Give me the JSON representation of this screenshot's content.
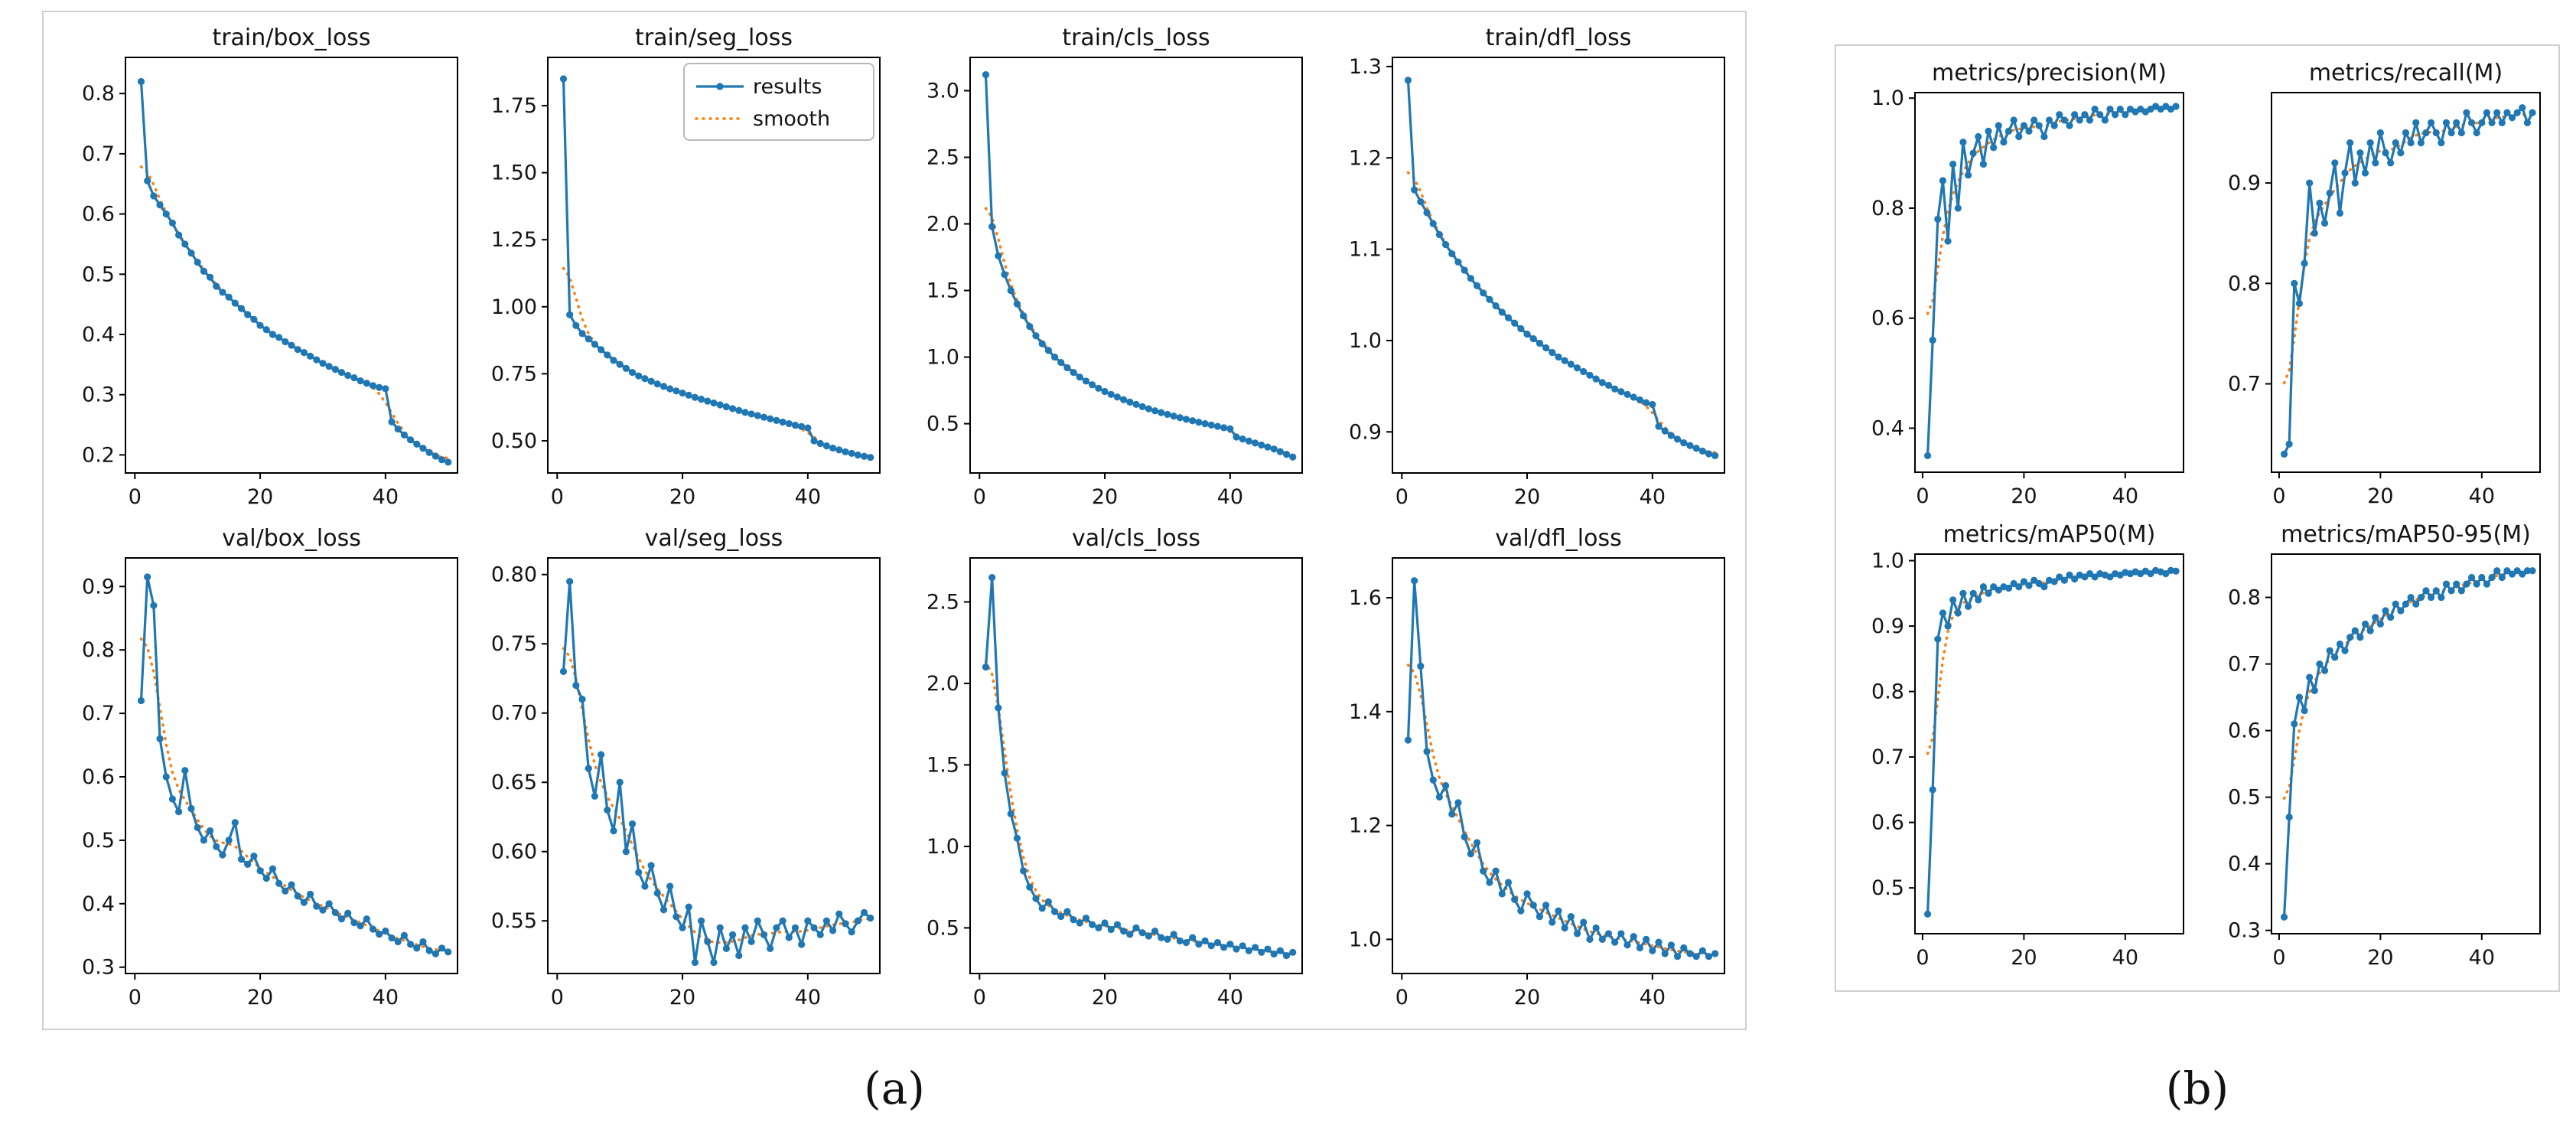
{
  "captions": {
    "a": "(a)",
    "b": "(b)"
  },
  "colors": {
    "results": "#1f77b4",
    "smooth": "#ff7f0e",
    "axis": "#000000",
    "legend_border": "#b9b9b9"
  },
  "legend": {
    "results_label": "results",
    "smooth_label": "smooth"
  },
  "chart_data": [
    {
      "panel": "a",
      "type": "line",
      "title": "train/box_loss",
      "legend": false,
      "x_range": [
        1,
        50
      ],
      "xlim": [
        -1.5,
        51.5
      ],
      "ylim": [
        0.17,
        0.86
      ],
      "xticks": [
        "0",
        "20",
        "40"
      ],
      "yticks": [
        "0.2",
        "0.3",
        "0.4",
        "0.5",
        "0.6",
        "0.7",
        "0.8"
      ],
      "series": [
        {
          "name": "results",
          "values": [
            0.82,
            0.655,
            0.63,
            0.615,
            0.6,
            0.585,
            0.565,
            0.55,
            0.535,
            0.52,
            0.505,
            0.495,
            0.48,
            0.47,
            0.462,
            0.452,
            0.443,
            0.433,
            0.425,
            0.415,
            0.408,
            0.4,
            0.395,
            0.388,
            0.382,
            0.375,
            0.37,
            0.364,
            0.358,
            0.352,
            0.347,
            0.342,
            0.337,
            0.332,
            0.328,
            0.323,
            0.319,
            0.315,
            0.312,
            0.31,
            0.255,
            0.243,
            0.233,
            0.225,
            0.218,
            0.211,
            0.204,
            0.198,
            0.192,
            0.188
          ]
        },
        {
          "name": "smooth",
          "derived_from": "results",
          "style": "dotted"
        }
      ]
    },
    {
      "panel": "a",
      "type": "line",
      "title": "train/seg_loss",
      "legend": true,
      "x_range": [
        1,
        50
      ],
      "xlim": [
        -1.5,
        51.5
      ],
      "ylim": [
        0.38,
        1.93
      ],
      "xticks": [
        "0",
        "20",
        "40"
      ],
      "yticks": [
        "0.50",
        "0.75",
        "1.00",
        "1.25",
        "1.50",
        "1.75"
      ],
      "series": [
        {
          "name": "results",
          "values": [
            1.85,
            0.97,
            0.93,
            0.9,
            0.88,
            0.86,
            0.84,
            0.82,
            0.8,
            0.785,
            0.77,
            0.755,
            0.742,
            0.732,
            0.722,
            0.712,
            0.703,
            0.694,
            0.686,
            0.678,
            0.67,
            0.662,
            0.655,
            0.648,
            0.641,
            0.634,
            0.627,
            0.62,
            0.613,
            0.606,
            0.6,
            0.594,
            0.588,
            0.582,
            0.576,
            0.57,
            0.564,
            0.558,
            0.553,
            0.548,
            0.5,
            0.49,
            0.481,
            0.473,
            0.466,
            0.459,
            0.453,
            0.447,
            0.442,
            0.438
          ]
        },
        {
          "name": "smooth",
          "derived_from": "results",
          "style": "dotted"
        }
      ]
    },
    {
      "panel": "a",
      "type": "line",
      "title": "train/cls_loss",
      "legend": false,
      "x_range": [
        1,
        50
      ],
      "xlim": [
        -1.5,
        51.5
      ],
      "ylim": [
        0.13,
        3.25
      ],
      "xticks": [
        "0",
        "20",
        "40"
      ],
      "yticks": [
        "0.5",
        "1.0",
        "1.5",
        "2.0",
        "2.5",
        "3.0"
      ],
      "series": [
        {
          "name": "results",
          "values": [
            3.12,
            1.98,
            1.76,
            1.62,
            1.5,
            1.4,
            1.31,
            1.23,
            1.16,
            1.1,
            1.05,
            1.0,
            0.96,
            0.92,
            0.885,
            0.85,
            0.82,
            0.792,
            0.766,
            0.742,
            0.72,
            0.7,
            0.68,
            0.662,
            0.645,
            0.628,
            0.612,
            0.597,
            0.583,
            0.57,
            0.557,
            0.545,
            0.533,
            0.522,
            0.511,
            0.5,
            0.49,
            0.48,
            0.47,
            0.462,
            0.4,
            0.385,
            0.37,
            0.355,
            0.34,
            0.325,
            0.31,
            0.29,
            0.27,
            0.25
          ]
        },
        {
          "name": "smooth",
          "derived_from": "results",
          "style": "dotted"
        }
      ]
    },
    {
      "panel": "a",
      "type": "line",
      "title": "train/dfl_loss",
      "legend": false,
      "x_range": [
        1,
        50
      ],
      "xlim": [
        -1.5,
        51.5
      ],
      "ylim": [
        0.855,
        1.31
      ],
      "xticks": [
        "0",
        "20",
        "40"
      ],
      "yticks": [
        "0.9",
        "1.0",
        "1.1",
        "1.2",
        "1.3"
      ],
      "series": [
        {
          "name": "results",
          "values": [
            1.285,
            1.165,
            1.152,
            1.14,
            1.128,
            1.116,
            1.105,
            1.095,
            1.086,
            1.077,
            1.068,
            1.06,
            1.052,
            1.045,
            1.038,
            1.031,
            1.025,
            1.019,
            1.013,
            1.007,
            1.002,
            0.997,
            0.992,
            0.987,
            0.982,
            0.978,
            0.974,
            0.97,
            0.966,
            0.962,
            0.958,
            0.954,
            0.951,
            0.947,
            0.944,
            0.941,
            0.938,
            0.935,
            0.932,
            0.93,
            0.906,
            0.901,
            0.896,
            0.892,
            0.888,
            0.885,
            0.882,
            0.879,
            0.876,
            0.874
          ]
        },
        {
          "name": "smooth",
          "derived_from": "results",
          "style": "dotted"
        }
      ]
    },
    {
      "panel": "a",
      "type": "line",
      "title": "val/box_loss",
      "legend": false,
      "x_range": [
        1,
        50
      ],
      "xlim": [
        -1.5,
        51.5
      ],
      "ylim": [
        0.29,
        0.945
      ],
      "xticks": [
        "0",
        "20",
        "40"
      ],
      "yticks": [
        "0.3",
        "0.4",
        "0.5",
        "0.6",
        "0.7",
        "0.8",
        "0.9"
      ],
      "series": [
        {
          "name": "results",
          "values": [
            0.72,
            0.915,
            0.87,
            0.66,
            0.6,
            0.565,
            0.545,
            0.61,
            0.55,
            0.52,
            0.5,
            0.515,
            0.49,
            0.477,
            0.5,
            0.528,
            0.47,
            0.462,
            0.475,
            0.452,
            0.44,
            0.455,
            0.432,
            0.42,
            0.43,
            0.412,
            0.402,
            0.415,
            0.396,
            0.39,
            0.4,
            0.386,
            0.376,
            0.385,
            0.37,
            0.365,
            0.376,
            0.36,
            0.352,
            0.357,
            0.346,
            0.34,
            0.35,
            0.336,
            0.33,
            0.34,
            0.326,
            0.321,
            0.33,
            0.324
          ]
        },
        {
          "name": "smooth",
          "derived_from": "results",
          "style": "dotted"
        }
      ]
    },
    {
      "panel": "a",
      "type": "line",
      "title": "val/seg_loss",
      "legend": false,
      "x_range": [
        1,
        50
      ],
      "xlim": [
        -1.5,
        51.5
      ],
      "ylim": [
        0.512,
        0.812
      ],
      "xticks": [
        "0",
        "20",
        "40"
      ],
      "yticks": [
        "0.55",
        "0.60",
        "0.65",
        "0.70",
        "0.75",
        "0.80"
      ],
      "series": [
        {
          "name": "results",
          "values": [
            0.73,
            0.795,
            0.72,
            0.71,
            0.66,
            0.64,
            0.67,
            0.63,
            0.615,
            0.65,
            0.6,
            0.62,
            0.585,
            0.575,
            0.59,
            0.57,
            0.558,
            0.575,
            0.553,
            0.545,
            0.56,
            0.52,
            0.55,
            0.535,
            0.52,
            0.545,
            0.53,
            0.54,
            0.525,
            0.545,
            0.535,
            0.55,
            0.54,
            0.53,
            0.545,
            0.55,
            0.538,
            0.545,
            0.533,
            0.55,
            0.545,
            0.54,
            0.55,
            0.543,
            0.555,
            0.548,
            0.542,
            0.55,
            0.556,
            0.552
          ]
        },
        {
          "name": "smooth",
          "derived_from": "results",
          "style": "dotted"
        }
      ]
    },
    {
      "panel": "a",
      "type": "line",
      "title": "val/cls_loss",
      "legend": false,
      "x_range": [
        1,
        50
      ],
      "xlim": [
        -1.5,
        51.5
      ],
      "ylim": [
        0.22,
        2.77
      ],
      "xticks": [
        "0",
        "20",
        "40"
      ],
      "yticks": [
        "0.5",
        "1.0",
        "1.5",
        "2.0",
        "2.5"
      ],
      "series": [
        {
          "name": "results",
          "values": [
            2.1,
            2.65,
            1.85,
            1.45,
            1.2,
            1.05,
            0.85,
            0.75,
            0.68,
            0.62,
            0.66,
            0.6,
            0.57,
            0.6,
            0.55,
            0.53,
            0.56,
            0.52,
            0.5,
            0.53,
            0.49,
            0.52,
            0.48,
            0.46,
            0.5,
            0.47,
            0.45,
            0.48,
            0.44,
            0.43,
            0.46,
            0.42,
            0.41,
            0.44,
            0.4,
            0.42,
            0.39,
            0.41,
            0.38,
            0.4,
            0.37,
            0.39,
            0.36,
            0.38,
            0.35,
            0.37,
            0.34,
            0.36,
            0.33,
            0.35
          ]
        },
        {
          "name": "smooth",
          "derived_from": "results",
          "style": "dotted"
        }
      ]
    },
    {
      "panel": "a",
      "type": "line",
      "title": "val/dfl_loss",
      "legend": false,
      "x_range": [
        1,
        50
      ],
      "xlim": [
        -1.5,
        51.5
      ],
      "ylim": [
        0.94,
        1.67
      ],
      "xticks": [
        "0",
        "20",
        "40"
      ],
      "yticks": [
        "1.0",
        "1.2",
        "1.4",
        "1.6"
      ],
      "series": [
        {
          "name": "results",
          "values": [
            1.35,
            1.63,
            1.48,
            1.33,
            1.28,
            1.25,
            1.27,
            1.22,
            1.24,
            1.18,
            1.15,
            1.17,
            1.12,
            1.1,
            1.12,
            1.08,
            1.1,
            1.07,
            1.05,
            1.08,
            1.06,
            1.04,
            1.06,
            1.03,
            1.05,
            1.02,
            1.04,
            1.01,
            1.03,
            1.0,
            1.02,
            1.0,
            1.01,
            0.995,
            1.01,
            0.99,
            1.005,
            0.985,
            1.0,
            0.98,
            0.995,
            0.975,
            0.99,
            0.97,
            0.985,
            0.975,
            0.97,
            0.98,
            0.97,
            0.975
          ]
        },
        {
          "name": "smooth",
          "derived_from": "results",
          "style": "dotted"
        }
      ]
    },
    {
      "panel": "b",
      "type": "line",
      "title": "metrics/precision(M)",
      "legend": false,
      "x_range": [
        1,
        50
      ],
      "xlim": [
        -1.5,
        51.5
      ],
      "ylim": [
        0.32,
        1.01
      ],
      "xticks": [
        "0",
        "20",
        "40"
      ],
      "yticks": [
        "0.4",
        "0.6",
        "0.8",
        "1.0"
      ],
      "series": [
        {
          "name": "results",
          "values": [
            0.35,
            0.56,
            0.78,
            0.85,
            0.74,
            0.88,
            0.8,
            0.92,
            0.86,
            0.9,
            0.93,
            0.88,
            0.94,
            0.91,
            0.95,
            0.92,
            0.94,
            0.96,
            0.93,
            0.95,
            0.94,
            0.96,
            0.95,
            0.93,
            0.96,
            0.95,
            0.97,
            0.96,
            0.95,
            0.97,
            0.96,
            0.97,
            0.96,
            0.98,
            0.97,
            0.96,
            0.98,
            0.97,
            0.98,
            0.97,
            0.98,
            0.975,
            0.98,
            0.975,
            0.98,
            0.985,
            0.98,
            0.985,
            0.98,
            0.985
          ]
        },
        {
          "name": "smooth",
          "derived_from": "results",
          "style": "dotted"
        }
      ]
    },
    {
      "panel": "b",
      "type": "line",
      "title": "metrics/recall(M)",
      "legend": false,
      "x_range": [
        1,
        50
      ],
      "xlim": [
        -1.5,
        51.5
      ],
      "ylim": [
        0.612,
        0.99
      ],
      "xticks": [
        "0",
        "20",
        "40"
      ],
      "yticks": [
        "0.7",
        "0.8",
        "0.9"
      ],
      "series": [
        {
          "name": "results",
          "values": [
            0.63,
            0.64,
            0.8,
            0.78,
            0.82,
            0.9,
            0.85,
            0.88,
            0.86,
            0.89,
            0.92,
            0.87,
            0.91,
            0.94,
            0.9,
            0.93,
            0.91,
            0.94,
            0.92,
            0.95,
            0.93,
            0.92,
            0.94,
            0.93,
            0.95,
            0.94,
            0.96,
            0.94,
            0.95,
            0.96,
            0.95,
            0.94,
            0.96,
            0.95,
            0.96,
            0.95,
            0.97,
            0.96,
            0.95,
            0.96,
            0.97,
            0.96,
            0.97,
            0.96,
            0.97,
            0.965,
            0.97,
            0.975,
            0.96,
            0.97
          ]
        },
        {
          "name": "smooth",
          "derived_from": "results",
          "style": "dotted"
        }
      ]
    },
    {
      "panel": "b",
      "type": "line",
      "title": "metrics/mAP50(M)",
      "legend": false,
      "x_range": [
        1,
        50
      ],
      "xlim": [
        -1.5,
        51.5
      ],
      "ylim": [
        0.43,
        1.01
      ],
      "xticks": [
        "0",
        "20",
        "40"
      ],
      "yticks": [
        "0.5",
        "0.6",
        "0.7",
        "0.8",
        "0.9",
        "1.0"
      ],
      "series": [
        {
          "name": "results",
          "values": [
            0.46,
            0.65,
            0.88,
            0.92,
            0.9,
            0.94,
            0.92,
            0.95,
            0.93,
            0.95,
            0.94,
            0.96,
            0.95,
            0.96,
            0.955,
            0.96,
            0.958,
            0.965,
            0.96,
            0.968,
            0.962,
            0.97,
            0.965,
            0.96,
            0.97,
            0.968,
            0.975,
            0.97,
            0.978,
            0.972,
            0.978,
            0.975,
            0.98,
            0.975,
            0.98,
            0.978,
            0.975,
            0.98,
            0.978,
            0.982,
            0.98,
            0.983,
            0.98,
            0.984,
            0.98,
            0.985,
            0.983,
            0.98,
            0.985,
            0.984
          ]
        },
        {
          "name": "smooth",
          "derived_from": "results",
          "style": "dotted"
        }
      ]
    },
    {
      "panel": "b",
      "type": "line",
      "title": "metrics/mAP50-95(M)",
      "legend": false,
      "x_range": [
        1,
        50
      ],
      "xlim": [
        -1.5,
        51.5
      ],
      "ylim": [
        0.295,
        0.865
      ],
      "xticks": [
        "0",
        "20",
        "40"
      ],
      "yticks": [
        "0.3",
        "0.4",
        "0.5",
        "0.6",
        "0.7",
        "0.8"
      ],
      "series": [
        {
          "name": "results",
          "values": [
            0.32,
            0.47,
            0.61,
            0.65,
            0.63,
            0.68,
            0.66,
            0.7,
            0.69,
            0.72,
            0.71,
            0.73,
            0.72,
            0.74,
            0.75,
            0.74,
            0.76,
            0.75,
            0.77,
            0.76,
            0.78,
            0.77,
            0.79,
            0.78,
            0.79,
            0.8,
            0.79,
            0.8,
            0.81,
            0.8,
            0.81,
            0.8,
            0.82,
            0.81,
            0.82,
            0.81,
            0.82,
            0.83,
            0.82,
            0.83,
            0.82,
            0.83,
            0.84,
            0.83,
            0.84,
            0.835,
            0.84,
            0.835,
            0.84,
            0.84
          ]
        },
        {
          "name": "smooth",
          "derived_from": "results",
          "style": "dotted"
        }
      ]
    }
  ]
}
